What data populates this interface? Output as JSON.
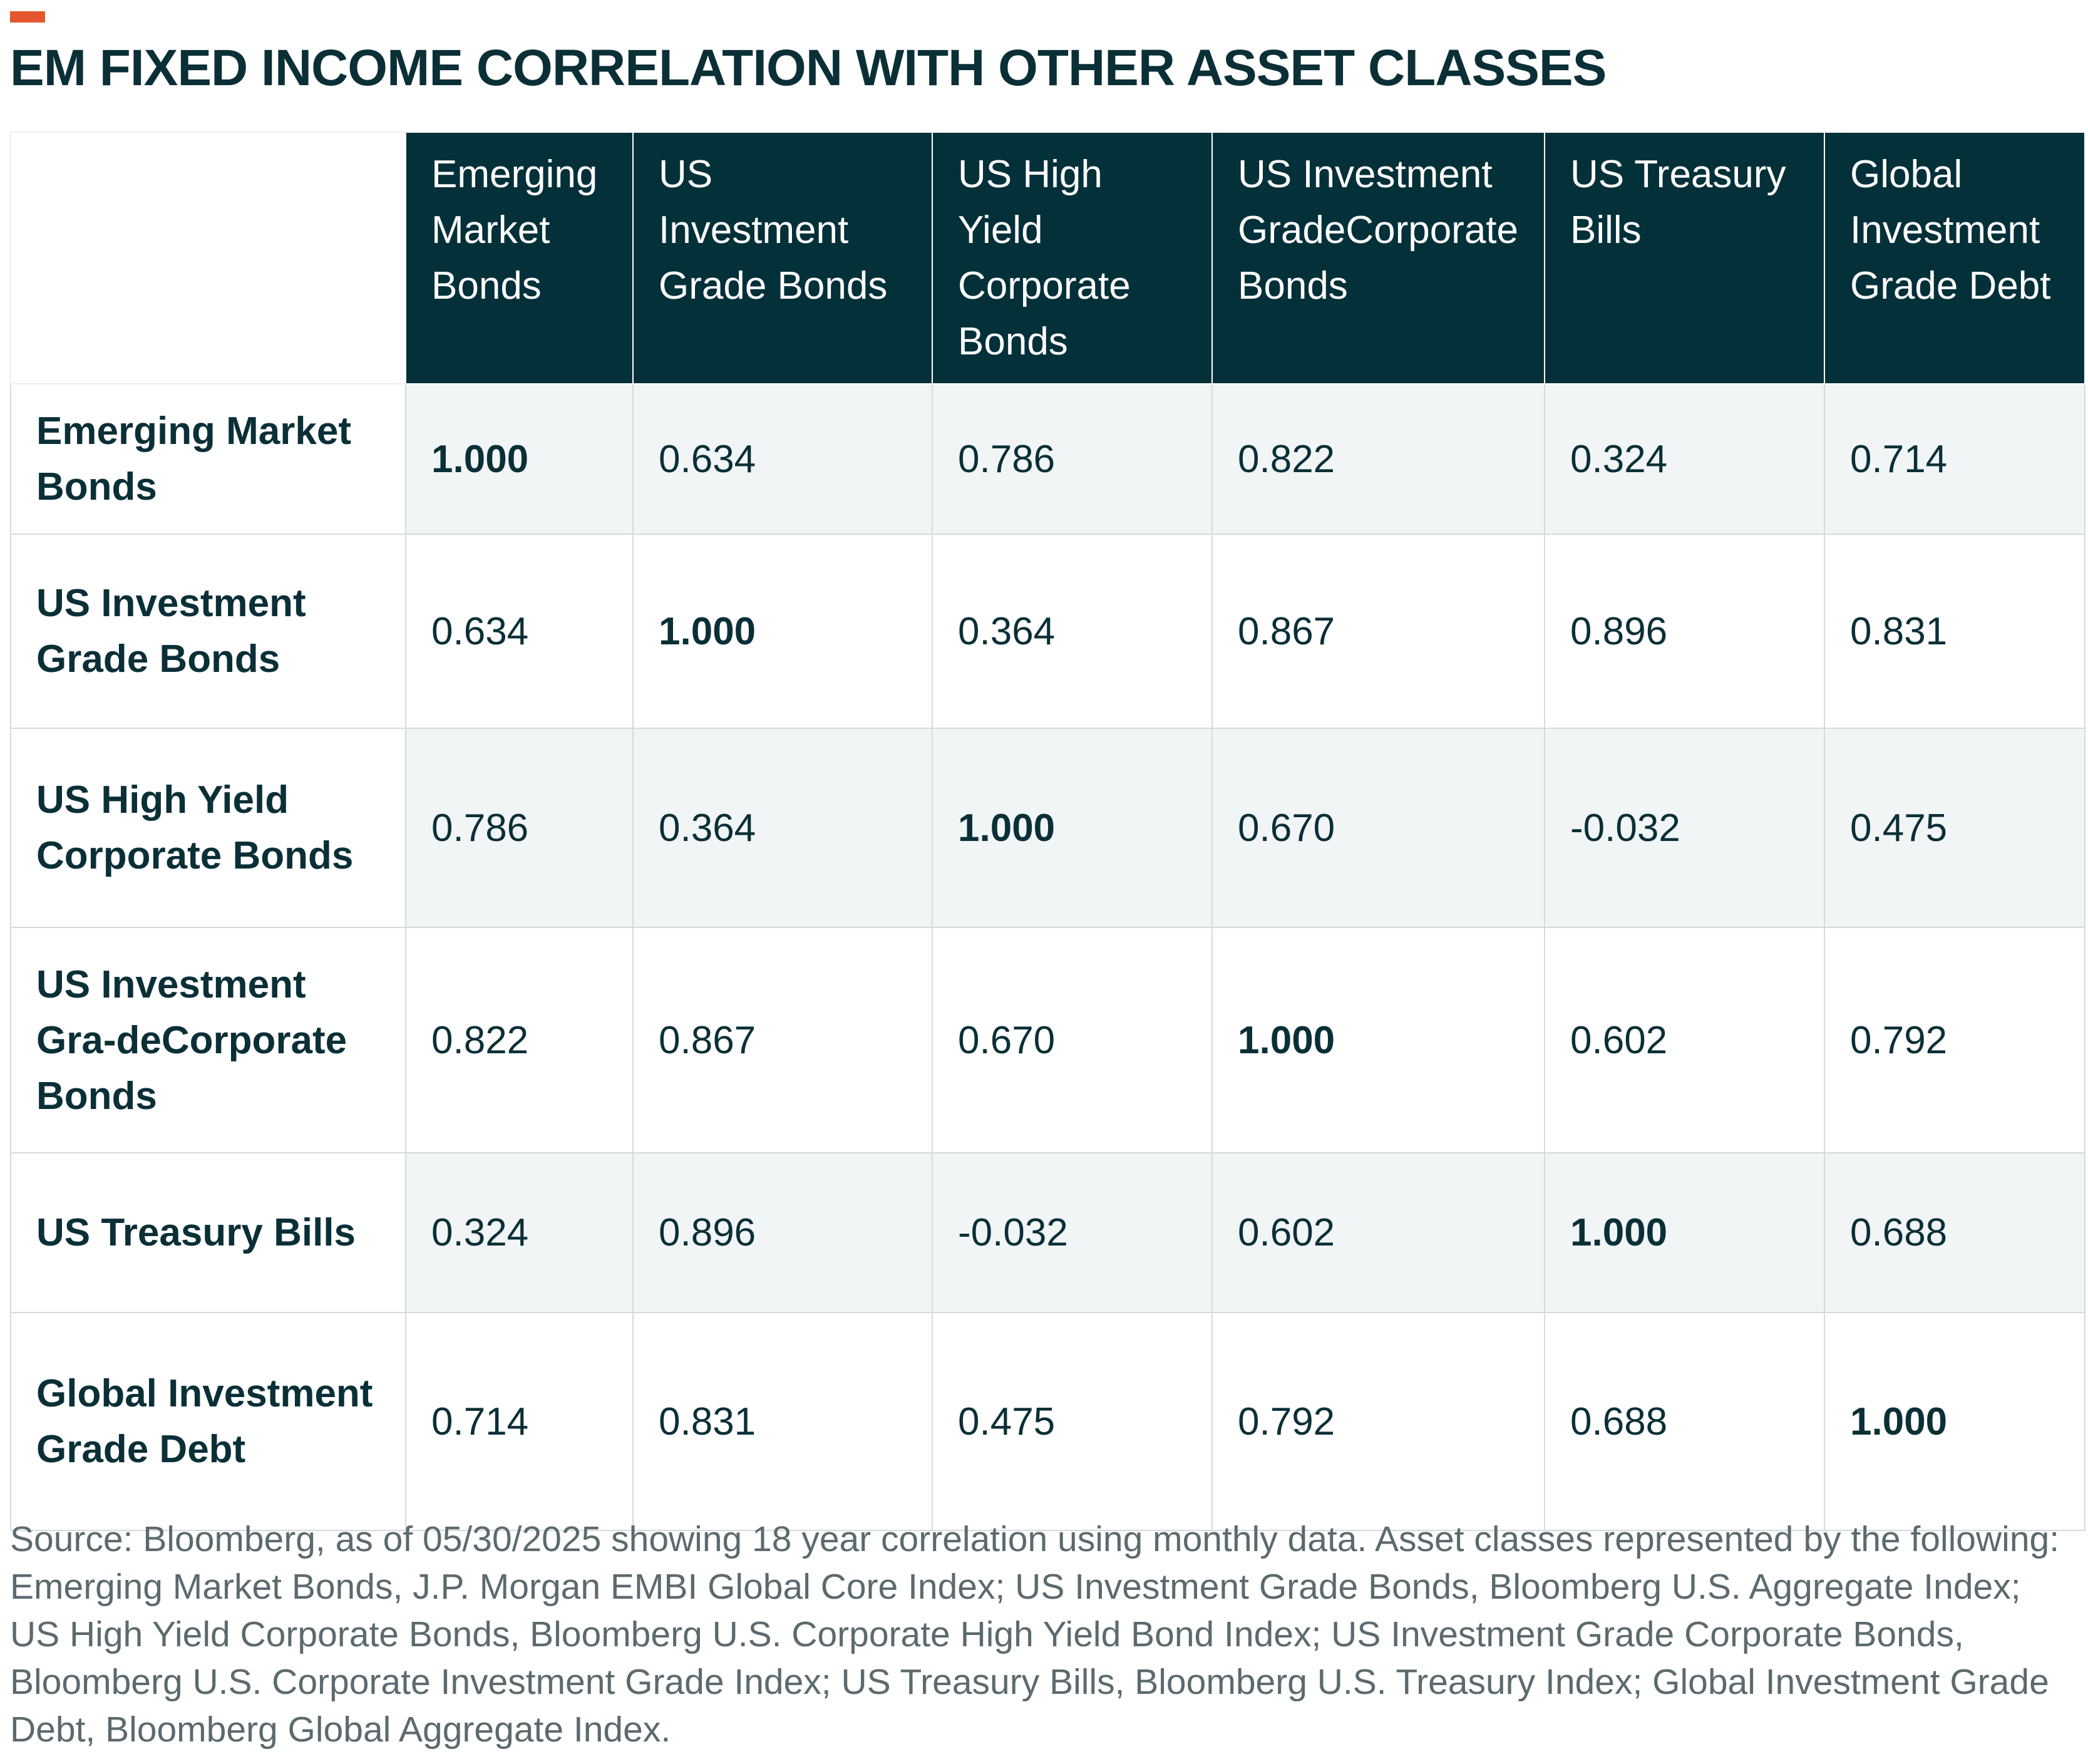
{
  "title": "EM FIXED INCOME CORRELATION WITH OTHER ASSET CLASSES",
  "colors": {
    "accent": "#e4572e",
    "header_bg": "#043039",
    "text": "#0b2f37",
    "row_shade": "#f1f5f6"
  },
  "chart_data": {
    "type": "table",
    "title": "EM FIXED INCOME CORRELATION WITH OTHER ASSET CLASSES",
    "columns": [
      "Emerging Market Bonds",
      "US Investment Grade Bonds",
      "US High Yield Corporate Bonds",
      "US Investment GradeCorporate Bonds",
      "US Treasury Bills",
      "Global Investment Grade Debt"
    ],
    "rows": [
      {
        "label": "Emerging Market Bonds",
        "values": [
          "1.000",
          "0.634",
          "0.786",
          "0.822",
          "0.324",
          "0.714"
        ]
      },
      {
        "label": "US Investment Grade Bonds",
        "values": [
          "0.634",
          "1.000",
          "0.364",
          "0.867",
          "0.896",
          "0.831"
        ]
      },
      {
        "label": "US High Yield Corporate Bonds",
        "values": [
          "0.786",
          "0.364",
          "1.000",
          "0.670",
          "-0.032",
          "0.475"
        ]
      },
      {
        "label": "US Investment Gra-deCorporate Bonds",
        "values": [
          "0.822",
          "0.867",
          "0.670",
          "1.000",
          "0.602",
          "0.792"
        ]
      },
      {
        "label": "US Treasury Bills",
        "values": [
          "0.324",
          "0.896",
          "-0.032",
          "0.602",
          "1.000",
          "0.688"
        ]
      },
      {
        "label": "Global Investment Grade Debt",
        "values": [
          "0.714",
          "0.831",
          "0.475",
          "0.792",
          "0.688",
          "1.000"
        ]
      }
    ]
  },
  "source_note": "Source: Bloomberg, as of 05/30/2025 showing 18 year correlation using monthly data. Asset classes represented by the following: Emerging Market Bonds, J.P. Morgan EMBI Global Core Index; US Investment Grade Bonds, Bloomberg U.S. Aggregate Index; US High Yield Corporate Bonds, Bloomberg U.S. Corporate High Yield Bond Index; US Investment Grade Corporate Bonds, Bloomberg U.S. Corporate Investment Grade Index; US Treasury Bills, Bloomberg U.S. Treasury Index; Global Investment Grade Debt, Bloomberg Global Aggregate Index."
}
